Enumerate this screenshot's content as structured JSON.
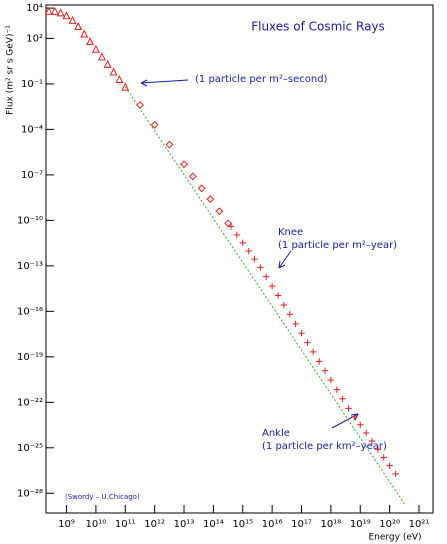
{
  "chart_data": {
    "type": "scatter",
    "title": "Fluxes of Cosmic Rays",
    "x_label": "Energy (eV)",
    "y_label": "Flux (m² sr s GeV)⁻¹",
    "x_log": true,
    "y_log": true,
    "xlim": [
      200000000.0,
      3e+21
    ],
    "ylim": [
      5e-30,
      16000.0
    ],
    "xticks": [
      {
        "value": 1000000000.0,
        "label": "10⁹"
      },
      {
        "value": 10000000000.0,
        "label": "10¹⁰"
      },
      {
        "value": 100000000000.0,
        "label": "10¹¹"
      },
      {
        "value": 1000000000000.0,
        "label": "10¹²"
      },
      {
        "value": 10000000000000.0,
        "label": "10¹³"
      },
      {
        "value": 100000000000000.0,
        "label": "10¹⁴"
      },
      {
        "value": 1000000000000000.0,
        "label": "10¹⁵"
      },
      {
        "value": 1e+16,
        "label": "10¹⁶"
      },
      {
        "value": 1e+17,
        "label": "10¹⁷"
      },
      {
        "value": 1e+18,
        "label": "10¹⁸"
      },
      {
        "value": 1e+19,
        "label": "10¹⁹"
      },
      {
        "value": 1e+20,
        "label": "10²⁰"
      },
      {
        "value": 1e+21,
        "label": "10²¹"
      }
    ],
    "yticks": [
      {
        "value": 10000.0,
        "label": "10⁴"
      },
      {
        "value": 100.0,
        "label": "10²"
      },
      {
        "value": 0.1,
        "label": "10⁻¹"
      },
      {
        "value": 0.0001,
        "label": "10⁻⁴"
      },
      {
        "value": 1e-07,
        "label": "10⁻⁷"
      },
      {
        "value": 1e-10,
        "label": "10⁻¹⁰"
      },
      {
        "value": 1e-13,
        "label": "10⁻¹³"
      },
      {
        "value": 1e-16,
        "label": "10⁻¹⁶"
      },
      {
        "value": 1e-19,
        "label": "10⁻¹⁹"
      },
      {
        "value": 1e-22,
        "label": "10⁻²²"
      },
      {
        "value": 1e-25,
        "label": "10⁻²⁵"
      },
      {
        "value": 1e-28,
        "label": "10⁻²⁸"
      }
    ],
    "series": [
      {
        "marker": "triangle",
        "color": "#e8201c",
        "x": [
          250000000.0,
          400000000.0,
          630000000.0,
          1000000000.0,
          1600000000.0,
          2500000000.0,
          4000000000.0,
          6300000000.0,
          10000000000.0,
          16000000000.0,
          25000000000.0,
          40000000000.0,
          63000000000.0,
          100000000000.0
        ],
        "values": [
          6300,
          6300,
          5000,
          3200,
          1600,
          630,
          200,
          63,
          20,
          6.3,
          2,
          0.63,
          0.2,
          0.063
        ]
      },
      {
        "marker": "diamond",
        "color": "#e8201c",
        "x": [
          320000000000.0,
          1000000000000.0,
          3200000000000.0,
          10000000000000.0,
          20000000000000.0,
          40000000000000.0,
          79000000000000.0,
          160000000000000.0,
          320000000000000.0
        ],
        "values": [
          0.004,
          0.0002,
          1e-05,
          5e-07,
          7.9e-08,
          1.3e-08,
          2.5e-09,
          4e-10,
          6.3e-11
        ]
      },
      {
        "marker": "cross",
        "color": "#e8201c",
        "x": [
          400000000000000.0,
          630000000000000.0,
          1000000000000000.0,
          1600000000000000.0,
          2500000000000000.0,
          4000000000000000.0,
          6300000000000000.0,
          1e+16,
          1.6e+16,
          2.5e+16,
          4e+16,
          6.3e+16,
          1e+17,
          1.6e+17,
          2.5e+17,
          4e+17,
          6.3e+17,
          1e+18,
          1.6e+18,
          2.5e+18,
          4e+18,
          6.3e+18,
          1e+19,
          1.6e+19,
          2.5e+19,
          4e+19,
          6.3e+19,
          1e+20,
          1.6e+20
        ],
        "values": [
          4e-11,
          1.1e-11,
          3.3e-12,
          9.5e-13,
          2.8e-13,
          7.9e-14,
          1.9e-14,
          4.6e-15,
          1.1e-15,
          2.6e-16,
          6.3e-17,
          1.5e-17,
          3.6e-18,
          8.7e-19,
          2.1e-19,
          5e-20,
          1.2e-20,
          2.9e-21,
          6.9e-22,
          1.7e-22,
          4e-23,
          1.1e-23,
          3.3e-24,
          9.5e-25,
          2.8e-25,
          7.9e-26,
          2.3e-26,
          6.6e-27,
          1.9e-27
        ]
      }
    ],
    "fit_line": {
      "color": "#22b822",
      "x": [
        100000000000.0,
        3.2e+20
      ],
      "values": [
        0.063,
        2e-29
      ]
    },
    "annotations": [
      [
        "(1 particle per m²–second)"
      ],
      [
        "Knee",
        "(1 particle per m²–year)"
      ],
      [
        "Ankle",
        "(1 particle per km²–year)"
      ],
      [
        "(Swordy – U.Chicago)"
      ]
    ]
  }
}
